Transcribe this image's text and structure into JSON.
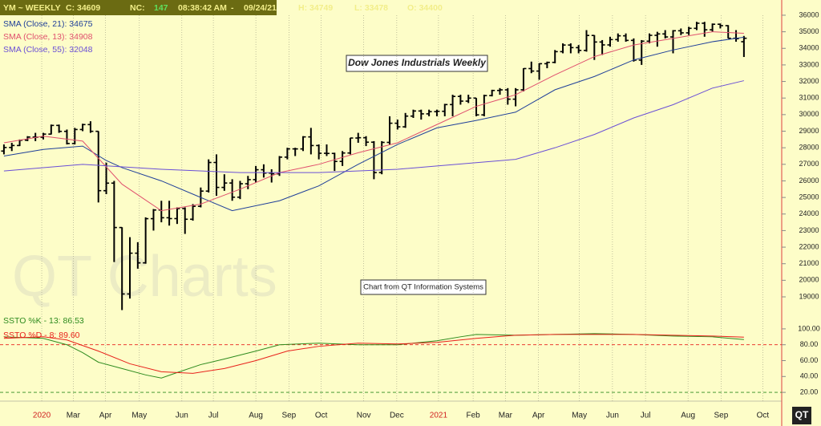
{
  "chart_data": [
    {
      "type": "ohlc",
      "header": [
        "YM ~ WEEKLY",
        "C: 34609",
        "NC:",
        "147",
        "08:38:42 AM",
        "-",
        "09/24/21",
        "H: 34749",
        "L: 33478",
        "O: 34400"
      ],
      "title": "Dow Jones Industrials Weekly",
      "annotation": "Chart from QT Information Systems",
      "watermark": "QT Charts",
      "logo": "QT",
      "bar_color": "#000000",
      "bars": [
        [
          27800,
          28200,
          27600,
          28015
        ],
        [
          28015,
          28300,
          27800,
          28135
        ],
        [
          28135,
          28500,
          28100,
          28455
        ],
        [
          28455,
          28700,
          28400,
          28645
        ],
        [
          28645,
          28900,
          28400,
          28634
        ],
        [
          28634,
          28900,
          28500,
          28823
        ],
        [
          28823,
          29400,
          28800,
          29348
        ],
        [
          29348,
          29400,
          28900,
          28989
        ],
        [
          28989,
          29100,
          28200,
          28256
        ],
        [
          28256,
          29200,
          28200,
          29102
        ],
        [
          29102,
          29450,
          29000,
          29398
        ],
        [
          29398,
          29600,
          28900,
          28992
        ],
        [
          28992,
          29000,
          24700,
          25409
        ],
        [
          25409,
          27100,
          25200,
          25864
        ],
        [
          25864,
          26000,
          21100,
          23185
        ],
        [
          23185,
          23200,
          18200,
          19174
        ],
        [
          19174,
          22600,
          18900,
          21636
        ],
        [
          21636,
          22300,
          20700,
          21052
        ],
        [
          21052,
          23800,
          21000,
          23719
        ],
        [
          23719,
          24300,
          23000,
          24242
        ],
        [
          24242,
          24800,
          23500,
          23775
        ],
        [
          23775,
          24800,
          23300,
          23724
        ],
        [
          23724,
          24400,
          23400,
          24331
        ],
        [
          24331,
          24400,
          22800,
          23685
        ],
        [
          23685,
          24600,
          23600,
          24465
        ],
        [
          24465,
          25600,
          24400,
          25383
        ],
        [
          25383,
          27300,
          25300,
          27111
        ],
        [
          27111,
          27600,
          25100,
          25606
        ],
        [
          25606,
          26400,
          25400,
          25871
        ],
        [
          25871,
          26100,
          24800,
          25016
        ],
        [
          25016,
          26000,
          24900,
          25827
        ],
        [
          25827,
          26300,
          25500,
          26075
        ],
        [
          26075,
          26900,
          25900,
          26672
        ],
        [
          26672,
          27000,
          26200,
          26470
        ],
        [
          26470,
          26700,
          25900,
          26428
        ],
        [
          26428,
          27500,
          26300,
          27433
        ],
        [
          27433,
          28000,
          27300,
          27931
        ],
        [
          27931,
          28000,
          27500,
          27930
        ],
        [
          27930,
          28700,
          27800,
          28654
        ],
        [
          28654,
          29200,
          27600,
          28133
        ],
        [
          28133,
          28200,
          27300,
          27666
        ],
        [
          27666,
          28200,
          27500,
          27657
        ],
        [
          27657,
          27700,
          26600,
          27174
        ],
        [
          27174,
          27800,
          26900,
          27683
        ],
        [
          27683,
          28600,
          27600,
          28587
        ],
        [
          28587,
          28900,
          28300,
          28606
        ],
        [
          28606,
          28700,
          28100,
          28336
        ],
        [
          28336,
          28400,
          26100,
          26502
        ],
        [
          26502,
          28400,
          26400,
          28323
        ],
        [
          28323,
          29900,
          28200,
          29480
        ],
        [
          29480,
          29700,
          29100,
          29263
        ],
        [
          29263,
          30100,
          29200,
          29910
        ],
        [
          29910,
          30300,
          29800,
          30218
        ],
        [
          30218,
          30300,
          29700,
          30046
        ],
        [
          30046,
          30300,
          29900,
          30179
        ],
        [
          30179,
          30300,
          29900,
          30200
        ],
        [
          30200,
          30650,
          29900,
          30606
        ],
        [
          30606,
          31200,
          29900,
          31098
        ],
        [
          31098,
          31200,
          30600,
          30814
        ],
        [
          30814,
          31200,
          30700,
          30997
        ],
        [
          30997,
          31000,
          29900,
          29983
        ],
        [
          29983,
          31200,
          29900,
          31148
        ],
        [
          31148,
          31500,
          31100,
          31458
        ],
        [
          31458,
          31600,
          31200,
          31494
        ],
        [
          31494,
          31600,
          30600,
          30932
        ],
        [
          30932,
          31600,
          30500,
          31496
        ],
        [
          31496,
          32800,
          31400,
          32779
        ],
        [
          32779,
          33200,
          32500,
          32628
        ],
        [
          32628,
          33100,
          32100,
          33073
        ],
        [
          33073,
          33200,
          32800,
          33153
        ],
        [
          33153,
          33900,
          33100,
          33801
        ],
        [
          33801,
          34300,
          33700,
          34200
        ],
        [
          34200,
          34300,
          33700,
          34043
        ],
        [
          34043,
          34200,
          33700,
          33875
        ],
        [
          33875,
          35100,
          33800,
          34778
        ],
        [
          34778,
          34800,
          33300,
          34382
        ],
        [
          34382,
          34500,
          33600,
          34208
        ],
        [
          34208,
          34700,
          34100,
          34529
        ],
        [
          34529,
          34900,
          34400,
          34756
        ],
        [
          34756,
          34900,
          34400,
          34480
        ],
        [
          34480,
          34600,
          33200,
          33290
        ],
        [
          33290,
          34500,
          33000,
          34433
        ],
        [
          34433,
          34900,
          34300,
          34786
        ],
        [
          34786,
          35000,
          34100,
          34870
        ],
        [
          34870,
          35100,
          34600,
          34688
        ],
        [
          34688,
          35100,
          33700,
          35061
        ],
        [
          35061,
          35200,
          34800,
          34935
        ],
        [
          34935,
          35300,
          34800,
          35209
        ],
        [
          35209,
          35600,
          35100,
          35515
        ],
        [
          35515,
          35600,
          34700,
          35120
        ],
        [
          35120,
          35500,
          35000,
          35455
        ],
        [
          35455,
          35500,
          35200,
          35369
        ],
        [
          35369,
          35400,
          34600,
          34608
        ],
        [
          34608,
          35100,
          34400,
          34584
        ],
        [
          34400,
          34749,
          33478,
          34609
        ]
      ],
      "series": [
        {
          "name": "SMA (Close, 21): 34675",
          "color": "#1f3f99",
          "x": [
            0,
            5,
            10,
            13,
            15,
            20,
            25,
            29,
            35,
            40,
            45,
            50,
            55,
            60,
            65,
            70,
            75,
            80,
            85,
            90,
            94
          ],
          "values": [
            27500,
            27900,
            28100,
            27230,
            26800,
            26000,
            25000,
            24200,
            24800,
            25700,
            27000,
            28200,
            29200,
            29650,
            30150,
            31500,
            32300,
            33300,
            33900,
            34400,
            34675
          ]
        },
        {
          "name": "SMA (Close, 13): 34908",
          "color": "#e0506e",
          "x": [
            0,
            5,
            10,
            15,
            20,
            25,
            30,
            35,
            40,
            45,
            50,
            55,
            60,
            65,
            70,
            75,
            80,
            85,
            90,
            94
          ],
          "values": [
            28300,
            28700,
            28400,
            25800,
            24200,
            24600,
            25500,
            26500,
            27000,
            27700,
            28300,
            29400,
            30500,
            31200,
            32400,
            33500,
            34200,
            34600,
            35000,
            34908
          ]
        },
        {
          "name": "SMA (Close, 55): 32048",
          "color": "#6a4fd6",
          "x": [
            0,
            10,
            20,
            30,
            40,
            50,
            55,
            60,
            65,
            70,
            75,
            80,
            85,
            90,
            94
          ],
          "values": [
            26600,
            27000,
            26700,
            26500,
            26500,
            26700,
            26900,
            27100,
            27300,
            28000,
            28800,
            29800,
            30600,
            31600,
            32048
          ]
        }
      ],
      "xlim": [
        -0.5,
        98.8
      ],
      "xticks": [
        {
          "value": 4.8,
          "label": "2020"
        },
        {
          "value": 8.8,
          "label": "Mar"
        },
        {
          "value": 12.9,
          "label": "Apr"
        },
        {
          "value": 17.2,
          "label": "May"
        },
        {
          "value": 22.6,
          "label": "Jun"
        },
        {
          "value": 26.6,
          "label": "Jul"
        },
        {
          "value": 32.0,
          "label": "Aug"
        },
        {
          "value": 36.2,
          "label": "Sep"
        },
        {
          "value": 40.3,
          "label": "Oct"
        },
        {
          "value": 45.7,
          "label": "Nov"
        },
        {
          "value": 49.9,
          "label": "Dec"
        },
        {
          "value": 55.2,
          "label": "2021"
        },
        {
          "value": 59.6,
          "label": "Feb"
        },
        {
          "value": 63.7,
          "label": "Mar"
        },
        {
          "value": 67.9,
          "label": "Apr"
        },
        {
          "value": 73.1,
          "label": "May"
        },
        {
          "value": 77.3,
          "label": "Jun"
        },
        {
          "value": 81.5,
          "label": "Jul"
        },
        {
          "value": 86.9,
          "label": "Aug"
        },
        {
          "value": 91.1,
          "label": "Sep"
        },
        {
          "value": 96.4,
          "label": "Oct"
        }
      ],
      "ylim": [
        17500,
        36700
      ],
      "yticks": [
        19000,
        20000,
        21000,
        22000,
        23000,
        24000,
        25000,
        26000,
        27000,
        28000,
        29000,
        30000,
        31000,
        32000,
        33000,
        34000,
        35000,
        36000
      ]
    },
    {
      "type": "line",
      "series": [
        {
          "name": "SSTO %K - 13: 86.53",
          "color": "#2e8b1e",
          "x": [
            0,
            5,
            8,
            10,
            12,
            15,
            18,
            20,
            22,
            25,
            28,
            32,
            35,
            40,
            45,
            50,
            55,
            58,
            60,
            65,
            70,
            75,
            80,
            85,
            90,
            94
          ],
          "values": [
            90,
            88,
            80,
            70,
            58,
            50,
            42,
            38,
            45,
            55,
            62,
            72,
            80,
            82,
            80,
            80,
            85,
            90,
            93,
            92,
            93,
            94,
            93,
            91,
            90,
            86.53
          ]
        },
        {
          "name": "SSTO %D - 8: 89.60",
          "color": "#e8201a",
          "x": [
            0,
            5,
            8,
            12,
            16,
            20,
            24,
            28,
            32,
            36,
            40,
            45,
            50,
            55,
            60,
            65,
            70,
            75,
            80,
            85,
            90,
            94
          ],
          "values": [
            88,
            90,
            86,
            72,
            56,
            46,
            44,
            50,
            60,
            72,
            78,
            82,
            81,
            83,
            88,
            92,
            93,
            93,
            93,
            92,
            91,
            89.6
          ]
        }
      ],
      "levels": [
        {
          "value": 80,
          "color": "#e8201a"
        },
        {
          "value": 20,
          "color": "#2e8b1e"
        }
      ],
      "ylim": [
        12,
        108
      ],
      "yticks": [
        {
          "value": 20,
          "label": "20.00"
        },
        {
          "value": 40,
          "label": "40.00"
        },
        {
          "value": 60,
          "label": "60.00"
        },
        {
          "value": 80,
          "label": "80.00"
        },
        {
          "value": 100,
          "label": "100.00"
        }
      ]
    }
  ]
}
